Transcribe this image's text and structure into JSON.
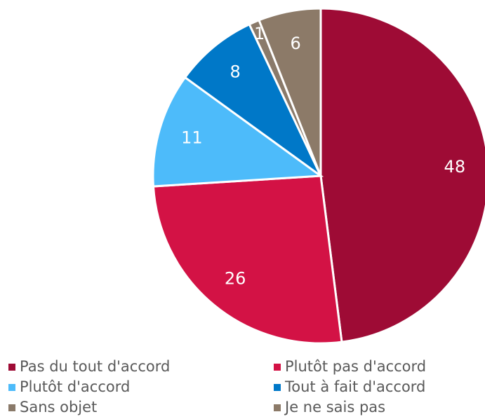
{
  "chart_data": {
    "type": "pie",
    "categories": [
      "Pas du tout d'accord",
      "Plutôt pas d'accord",
      "Plutôt d'accord",
      "Tout à fait d'accord",
      "Sans objet",
      "Je ne sais pas"
    ],
    "values": [
      48,
      26,
      11,
      8,
      1,
      6
    ],
    "colors": [
      "#9e0b35",
      "#d31245",
      "#4dbbfa",
      "#0078c8",
      "#8a7a6a",
      "#8c7a68"
    ]
  }
}
